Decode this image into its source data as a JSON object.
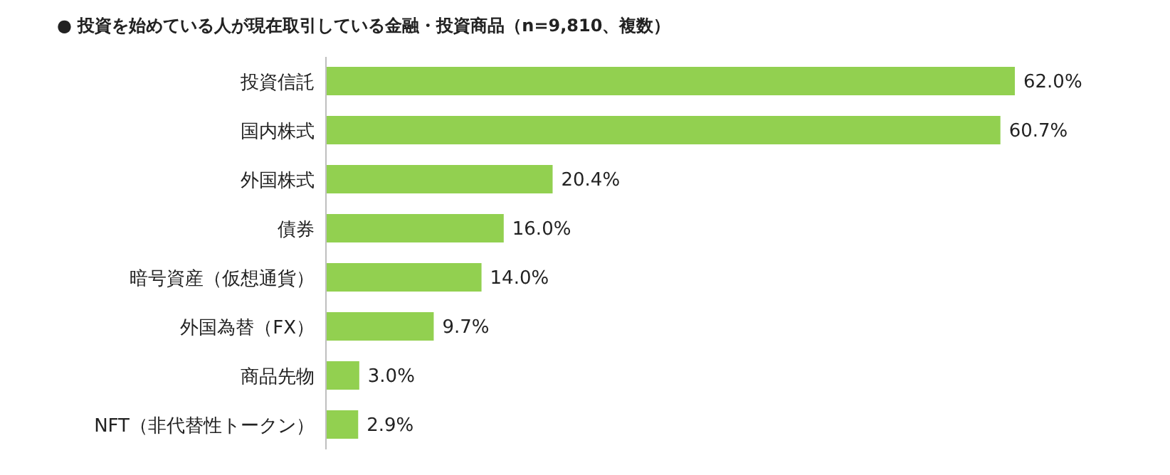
{
  "chart_data": {
    "type": "bar",
    "orientation": "horizontal",
    "title": "● 投資を始めている人が現在取引している金融・投資商品（n=9,810、複数）",
    "categories": [
      "投資信託",
      "国内株式",
      "外国株式",
      "債券",
      "暗号資産（仮想通貨）",
      "外国為替（FX）",
      "商品先物",
      "NFT（非代替性トークン）"
    ],
    "values": [
      62.0,
      60.7,
      20.4,
      16.0,
      14.0,
      9.7,
      3.0,
      2.9
    ],
    "value_labels": [
      "62.0%",
      "60.7%",
      "20.4%",
      "16.0%",
      "14.0%",
      "9.7%",
      "3.0%",
      "2.9%"
    ],
    "color": "#92d050",
    "tick_labels": "y"
  }
}
